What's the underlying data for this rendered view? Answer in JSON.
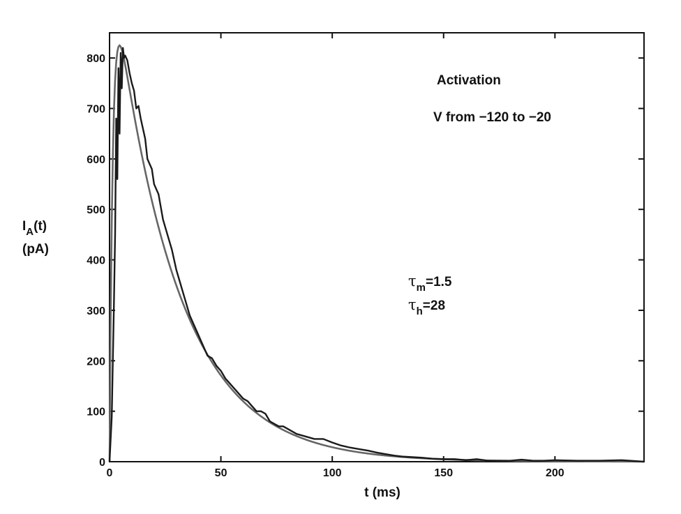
{
  "chart_data": {
    "type": "line",
    "xlabel": "t  (ms)",
    "ylabel_line1": "I",
    "ylabel_sub": "A",
    "ylabel_line1_tail": "(t)",
    "ylabel_line2": "(pA)",
    "xlim": [
      0,
      240
    ],
    "ylim": [
      0,
      850
    ],
    "xticks": [
      0,
      50,
      100,
      150,
      200
    ],
    "yticks": [
      0,
      100,
      200,
      300,
      400,
      500,
      600,
      700,
      800
    ],
    "grid": false,
    "annotations": {
      "title": "Activation",
      "subtitle": "V from −120 to −20",
      "tau_symbol": "τ",
      "tau_m_sub": "m",
      "tau_m_value": "=1.5",
      "tau_h_sub": "h",
      "tau_h_value": "=28"
    },
    "fit_params": {
      "tau_m": 1.5,
      "tau_h": 28
    },
    "series": [
      {
        "role": "measured",
        "color": "#1a1a1a",
        "x": [
          0,
          1,
          2,
          2.5,
          3,
          3.5,
          4,
          4.5,
          5,
          5.5,
          6,
          6.5,
          7,
          8,
          9,
          10,
          11,
          12,
          13,
          14,
          15,
          16,
          17,
          18,
          19,
          20,
          22,
          24,
          26,
          28,
          30,
          32,
          34,
          36,
          38,
          40,
          42,
          44,
          46,
          48,
          50,
          52,
          54,
          56,
          58,
          60,
          62,
          64,
          66,
          68,
          70,
          72,
          74,
          76,
          78,
          80,
          84,
          88,
          92,
          96,
          100,
          104,
          108,
          112,
          116,
          120,
          124,
          128,
          132,
          136,
          140,
          145,
          150,
          155,
          160,
          165,
          170,
          175,
          180,
          185,
          190,
          195,
          200,
          210,
          220,
          230,
          240
        ],
        "y": [
          0,
          90,
          320,
          450,
          680,
          560,
          780,
          650,
          810,
          740,
          820,
          800,
          805,
          795,
          770,
          750,
          735,
          700,
          705,
          680,
          660,
          640,
          600,
          590,
          580,
          550,
          530,
          480,
          450,
          420,
          380,
          350,
          320,
          290,
          270,
          250,
          230,
          210,
          205,
          190,
          180,
          165,
          155,
          145,
          135,
          125,
          120,
          110,
          100,
          100,
          95,
          80,
          75,
          70,
          70,
          65,
          55,
          50,
          45,
          45,
          38,
          32,
          28,
          25,
          22,
          18,
          15,
          12,
          10,
          9,
          8,
          6,
          5,
          5,
          3,
          5,
          2,
          2,
          2,
          4,
          2,
          2,
          3,
          2,
          2,
          3,
          0
        ]
      },
      {
        "role": "fit",
        "color": "#666666",
        "tau_m": 1.5,
        "tau_h": 28,
        "peak": 825
      }
    ]
  }
}
